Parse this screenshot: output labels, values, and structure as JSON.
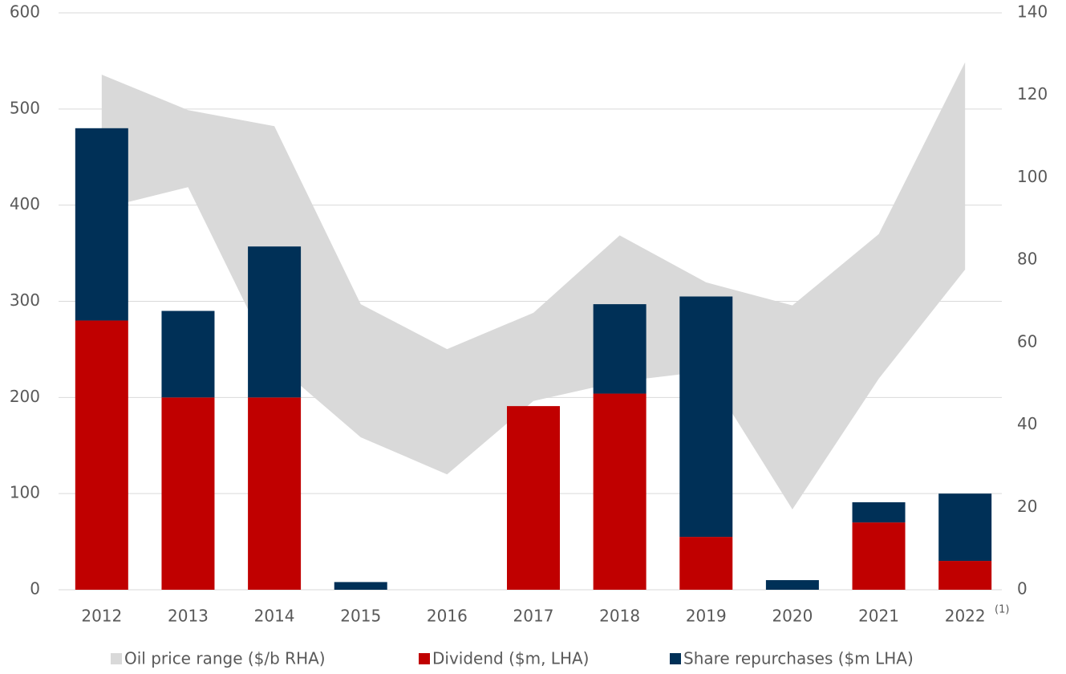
{
  "chart_data": {
    "type": "bar",
    "categories": [
      "2012",
      "2013",
      "2014",
      "2015",
      "2016",
      "2017",
      "2018",
      "2019",
      "2020",
      "2021",
      "2022"
    ],
    "annotation": "(1)",
    "stacked": true,
    "series": [
      {
        "name": "Oil price range ($/b RHA)",
        "color": "#d9d9d9",
        "axis": "y2",
        "type": "area_range",
        "low": [
          92.5,
          97.7,
          55,
          37,
          28,
          45.8,
          50.5,
          53,
          19.5,
          51.2,
          77.7
        ],
        "high": [
          125,
          116.4,
          112.5,
          69.3,
          58.4,
          67.2,
          86,
          74.6,
          69,
          86.3,
          128
        ]
      },
      {
        "name": "Dividend ($m, LHA)",
        "color": "#c00000",
        "values": [
          280,
          200,
          200,
          0,
          0,
          191,
          204,
          55,
          0,
          70,
          30
        ]
      },
      {
        "name": "Share repurchases ($m LHA)",
        "color": "#003057",
        "values": [
          200,
          90,
          157,
          8,
          0,
          0,
          93,
          250,
          10,
          21,
          70
        ]
      }
    ],
    "ylim": [
      0,
      600
    ],
    "yticks": [
      0,
      100,
      200,
      300,
      400,
      500,
      600
    ],
    "y2lim": [
      0,
      140
    ],
    "y2ticks": [
      0,
      20,
      40,
      60,
      80,
      100,
      120,
      140
    ],
    "grid": true,
    "legend": "bottom"
  }
}
